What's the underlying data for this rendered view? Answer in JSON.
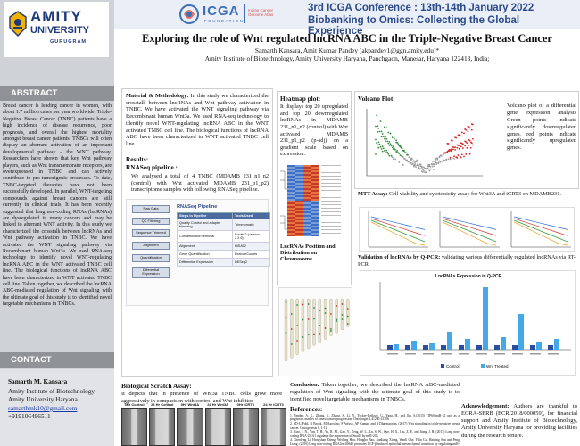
{
  "header": {
    "logo_amity": "AMITY",
    "logo_university": "UNIVERSITY",
    "logo_campus": "GURUGRAM",
    "icga_logo": "ICGA",
    "icga_logo_sub": "FOUNDATION",
    "icga_tagline": "Indian Cancer Genome Atlas",
    "conference_line1": "3rd ICGA Conference : 13th-14th January 2022",
    "conference_line2": "Biobanking to Omics: Collecting the Global Experience"
  },
  "poster": {
    "title": "Exploring the role of Wnt regulated lncRNA ABC in the Triple-Negative Breast Cancer",
    "authors": "Samarth Kansara, Amit Kumar Pandey (akpandey1@ggn.amity.edu)*",
    "affiliation": "Amity Institute of Biotechnology, Amity University Haryana, Panchgaon, Manesar, Haryana 122413, India;"
  },
  "abstract": {
    "heading": "ABSTRACT",
    "text": "Breast cancer is leading cancer in women, with about 1.7 million cases per year worldwide. Triple-Negative Breast Cancer (TNBC) patients have a high incidence of disease recurrence, poor prognosis, and overall the highest mortality amongst breast cancer patients. TNBCs will often display an aberrant activation of an important developmental pathway – the WNT pathway. Researchers have shown that key Wnt pathway players, such as Wnt transmembrane receptors, are overexpressed in TNBC and can actively contribute to pro-tumorigenic processes. To date, TNBC-targeted therapies have not been successfully developed. In parallel, WNT-targeting compounds against breast cancers are still currently in clinical trials. It has been recently suggested that long non-coding RNAs (lncRNAs) are dysregulated in many cancers and may be linked to aberrant WNT activity. In this study we characterized the crosstalk between lncRNAs and Wnt pathway activation in TNBC. We have activated the WNT signaling pathway via Recombinant human Wnt3a. We used RNA-seq technology to identify novel WNT-regulating lncRNA ABC in the WNT activated TNBC cell line. The biological functions of lncRNA ABC have been characterized in WNT activated TNBC cell line. Taken together, we described the lncRNA ABC-mediated regulation of Wnt signaling with the ultimate goal of this study is to identified novel targetable mechanisms in TNBCs."
  },
  "contact": {
    "heading": "CONTACT",
    "name": "Samarth M. Kansara",
    "line1": "Amity Institute of Biotechnology,",
    "line2": "Amity University Haryana.",
    "email": "samarthmk10@gmail.com",
    "phone": "+919106496511"
  },
  "methods": {
    "label": "Material & Methodology:",
    "text": "In this study we characterized the crosstalk between lncRNAs and Wnt pathway activation in TNBC. We have activated the WNT signaling pathway via Recombinant human Wnt3a. We used RNA-seq technology to identify novel WNT-regulating lncRNA ABC in the WNT activated TNBC cell line. The biological functions of lncRNA ABC have been characterized in WNT activated TNBC cell line."
  },
  "results": {
    "heading": "Results:",
    "subheading": "RNASeq pipeline :",
    "text": "We analysed a total of 4 TNBC (MDAMB 231_n1_n2 (control) with Wnt activated MDAMB 231_p1_p2) transcriptome samples with following RNASeq pipeline.",
    "pipeline_title": "RNASeq Pipeline",
    "pipeline_steps": [
      "Raw Data",
      "QC Filtering",
      "Sequence Trimmed",
      "Alignment",
      "Quantification",
      "Differential Expression"
    ],
    "table_headers": [
      "Steps in Pipeline",
      "Tools Used"
    ],
    "table_rows": [
      [
        "Quality Control and adapter trimming",
        "Trimmomatic"
      ],
      [
        "Contamination removal",
        "Bowtie2 (version 2.2.6)"
      ],
      [
        "Alignment",
        "HISAT2"
      ],
      [
        "Gene Quantification",
        "FeatureCounts"
      ],
      [
        "Differential Expression",
        "DESeq2"
      ]
    ]
  },
  "heatmap": {
    "heading": "Heatmap plot:",
    "text": "It displays top 20 upregulated and top 20 downregulated lncRNAs in MDAMB 231_n1_n2 (control) with Wnt activated MDAMB 231_p1_p2 (p-adj) on a gradient scale based on expression.",
    "chrom_heading": "LncRNAs Position and Distribution on Chromosome"
  },
  "volcano": {
    "heading": "Volcano Plot:",
    "text": "Volcano plot of a differential gene expression analysis Green points indicate significantly downregulated genes, red points indicate significantly upregulated genes."
  },
  "mtt": {
    "heading": "MTT Assay:",
    "text": "Cell viability and cytotoxicity assay for Wnt3A and iCRT3 on MDAMB231."
  },
  "qpcr": {
    "heading": "Validation of lncRNAs by Q-PCR:",
    "text": "validating various differentially regulated lncRNAs via RT-PCR.",
    "chart_title": "LncRNAs Expression in Q-PCR",
    "legend": [
      "Control",
      "Wnt Treated"
    ]
  },
  "scratch": {
    "heading": "Biological Scratch Assay:",
    "text": "It depicts that in presence of Wnt3a TNBC cells grow more aggressively in comparison with control and Wnt inhibitor.",
    "labels": [
      "0Hr Control",
      "24 Hr Control",
      "0Hr Wnt3A",
      "24 Hr Wnt3A",
      "0Hr iCRT3",
      "24 Hr iCRT3"
    ]
  },
  "conclusion": {
    "label": "Conclusion:",
    "text": "Taken together, we described the lncRNA ABC-mediated regulation of Wnt signaling with the ultimate goal of this study is to identified novel targetable mechanisms in TNBCs."
  },
  "references": {
    "heading": "References:",
    "items": [
      "1. Pandey, A. K., Zhang, Y., Zhang, S., Li, Y., Tucker-Kellogg, G., Yang, H., and Jha, S.(2015) TIP60-miR-22 axis as a prognostic marker of breast cancer progression. Oncotarget 6,41290-41306",
      "2. SD-G Pohl, N Brook, M Agostino, F Arfuso, AP Kumar, and A Dharmarajan. (2017) Wnt signaling in triple-negative breast cancer. Oncogenesis 6, 1-12",
      "3. Xiao, J. N., Yan, T. H., Yu, R. M., Gao, Y., Zeng, W. L., Lu, S. W., Que, H. X., Liu, Z. P., and Jiang, J. H. (2017) Long non-coding RNA UCA1 regulates the expression of Snail2 by miR-203.",
      "4. Chenfeng Li, Hongshan Zheng, Weilong Hou, Hongbo Bao, Jianliang Xiong, Wanli Che, Yilin Gu, Haining Sun and Peng Liang. (2019) Long non-coding RNA linc00645 promotes TGF-β-induced epithelial-mesenchymal transition by regulating miR-205-3p-ZEB1 axis in glioma. Cell Death and Disease, 10:717."
    ]
  },
  "acknowledgement": {
    "label": "Acknowledgement:",
    "text": "Authors are thankful to ECRA-SERB (ECR/2018/000059), for financial support and Amity Institute of Biotechnology, Amity University Haryana for providing facilities during the research tenure."
  }
}
